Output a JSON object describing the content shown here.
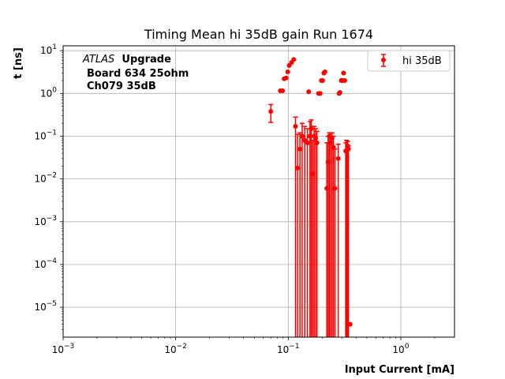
{
  "chart_data": {
    "type": "scatter",
    "title": "Timing Mean hi 35dB gain Run 1674",
    "xlabel": "Input Current [mA]",
    "ylabel": "t [ns]",
    "xscale": "log",
    "yscale": "log",
    "xlim": [
      0.001,
      3
    ],
    "ylim": [
      2e-06,
      13
    ],
    "grid": true,
    "legend_position": "top-right",
    "series_color": "#ff0000",
    "x_tick_labels": [
      {
        "value": 0.001,
        "base": "10",
        "exp": "−3"
      },
      {
        "value": 0.01,
        "base": "10",
        "exp": "−2"
      },
      {
        "value": 0.1,
        "base": "10",
        "exp": "−1"
      },
      {
        "value": 1,
        "base": "10",
        "exp": "0"
      }
    ],
    "y_tick_labels": [
      {
        "value": 1e-05,
        "base": "10",
        "exp": "−5"
      },
      {
        "value": 0.0001,
        "base": "10",
        "exp": "−4"
      },
      {
        "value": 0.001,
        "base": "10",
        "exp": "−3"
      },
      {
        "value": 0.01,
        "base": "10",
        "exp": "−2"
      },
      {
        "value": 0.1,
        "base": "10",
        "exp": "−1"
      },
      {
        "value": 1,
        "base": "10",
        "exp": "0"
      },
      {
        "value": 10,
        "base": "10",
        "exp": "1"
      }
    ],
    "annotations": {
      "atlas": "ATLAS",
      "upgrade": "Upgrade",
      "line2": "Board 634 25ohm",
      "line3": "Ch079 35dB"
    },
    "series": [
      {
        "name": "hi 35dB",
        "points": [
          {
            "x": 0.07,
            "y": 0.38,
            "lo": 0.21,
            "hi": 0.55
          },
          {
            "x": 0.085,
            "y": 1.15
          },
          {
            "x": 0.089,
            "y": 1.15
          },
          {
            "x": 0.092,
            "y": 2.2
          },
          {
            "x": 0.096,
            "y": 2.3
          },
          {
            "x": 0.099,
            "y": 3.2
          },
          {
            "x": 0.102,
            "y": 4.5
          },
          {
            "x": 0.107,
            "y": 5.3
          },
          {
            "x": 0.112,
            "y": 6.2
          },
          {
            "x": 0.116,
            "y": 0.17,
            "lo": 2e-06,
            "hi": 0.28
          },
          {
            "x": 0.121,
            "y": 0.018,
            "lo": 2e-06,
            "hi": 0.11
          },
          {
            "x": 0.127,
            "y": 0.05,
            "lo": 2e-06,
            "hi": 0.12
          },
          {
            "x": 0.133,
            "y": 0.1,
            "lo": 2e-06,
            "hi": 0.2
          },
          {
            "x": 0.14,
            "y": 0.08,
            "lo": 2e-06,
            "hi": 0.17
          },
          {
            "x": 0.148,
            "y": 0.07,
            "lo": 2e-06,
            "hi": 0.15
          },
          {
            "x": 0.152,
            "y": 1.1
          },
          {
            "x": 0.156,
            "y": 0.1,
            "lo": 2e-06,
            "hi": 0.22
          },
          {
            "x": 0.16,
            "y": 0.15,
            "lo": 2e-06,
            "hi": 0.24
          },
          {
            "x": 0.165,
            "y": 0.013,
            "lo": 2e-06,
            "hi": 0.08
          },
          {
            "x": 0.17,
            "y": 0.1,
            "lo": 2e-06,
            "hi": 0.17
          },
          {
            "x": 0.175,
            "y": 0.09,
            "lo": 2e-06,
            "hi": 0.15
          },
          {
            "x": 0.18,
            "y": 0.07,
            "lo": 2e-06,
            "hi": 0.13
          },
          {
            "x": 0.186,
            "y": 1.0
          },
          {
            "x": 0.192,
            "y": 1.0
          },
          {
            "x": 0.197,
            "y": 2.0
          },
          {
            "x": 0.202,
            "y": 2.0
          },
          {
            "x": 0.207,
            "y": 3.0
          },
          {
            "x": 0.212,
            "y": 3.2
          },
          {
            "x": 0.22,
            "y": 0.006,
            "lo": 2e-06,
            "hi": 0.07
          },
          {
            "x": 0.226,
            "y": 0.025,
            "lo": 2e-06,
            "hi": 0.1
          },
          {
            "x": 0.232,
            "y": 0.1,
            "lo": 2e-06,
            "hi": 0.12
          },
          {
            "x": 0.238,
            "y": 0.07,
            "lo": 2e-06,
            "hi": 0.12
          },
          {
            "x": 0.245,
            "y": 0.09,
            "lo": 2e-06,
            "hi": 0.12
          },
          {
            "x": 0.252,
            "y": 0.055,
            "lo": 2e-06,
            "hi": 0.1
          },
          {
            "x": 0.26,
            "y": 0.006,
            "lo": 2e-06,
            "hi": 0.05
          },
          {
            "x": 0.278,
            "y": 0.03,
            "lo": 2e-06,
            "hi": 0.065
          },
          {
            "x": 0.283,
            "y": 1.0
          },
          {
            "x": 0.288,
            "y": 1.05
          },
          {
            "x": 0.296,
            "y": 2.0
          },
          {
            "x": 0.303,
            "y": 2.0
          },
          {
            "x": 0.31,
            "y": 3.0
          },
          {
            "x": 0.318,
            "y": 2.0
          },
          {
            "x": 0.324,
            "y": 0.045,
            "lo": 2e-06,
            "hi": 0.07
          },
          {
            "x": 0.33,
            "y": 0.045,
            "lo": 2e-06,
            "hi": 0.08
          },
          {
            "x": 0.336,
            "y": 0.06,
            "lo": 2e-06,
            "hi": 0.075
          },
          {
            "x": 0.343,
            "y": 0.05,
            "lo": 2e-06,
            "hi": 0.06
          },
          {
            "x": 0.355,
            "y": 4e-06
          }
        ]
      }
    ]
  }
}
